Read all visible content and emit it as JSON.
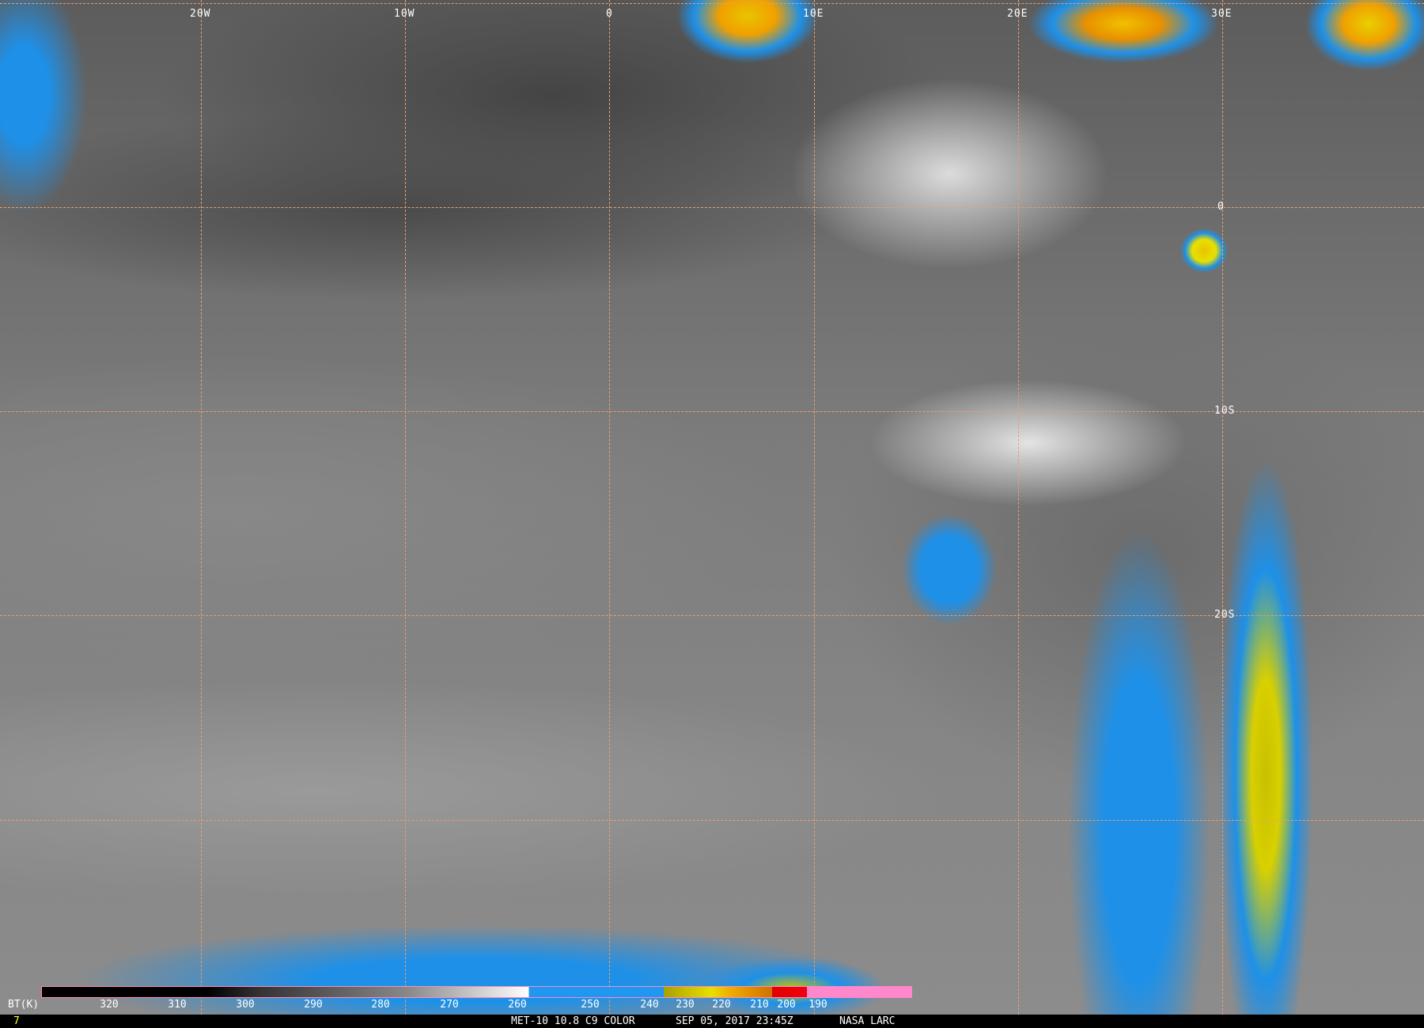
{
  "grid_labels": {
    "lon": [
      "20W",
      "10W",
      "0",
      "10E",
      "20E",
      "30E"
    ],
    "lat": [
      "0",
      "10S",
      "20S"
    ]
  },
  "colorbar": {
    "title": "BT(K)",
    "ticks": [
      "320",
      "310",
      "300",
      "290",
      "280",
      "270",
      "260",
      "250",
      "240",
      "230",
      "220",
      "210",
      "200",
      "190"
    ]
  },
  "footer": {
    "frame": "7",
    "product": "MET-10 10.8 C9 COLOR",
    "datetime": "SEP 05, 2017 23:45Z",
    "source": "NASA LARC"
  },
  "colors": {
    "grid": "#e8a070",
    "frame_number": "#ffff40",
    "cold_blue": "#1e98f0",
    "pink": "#ff88cc"
  }
}
